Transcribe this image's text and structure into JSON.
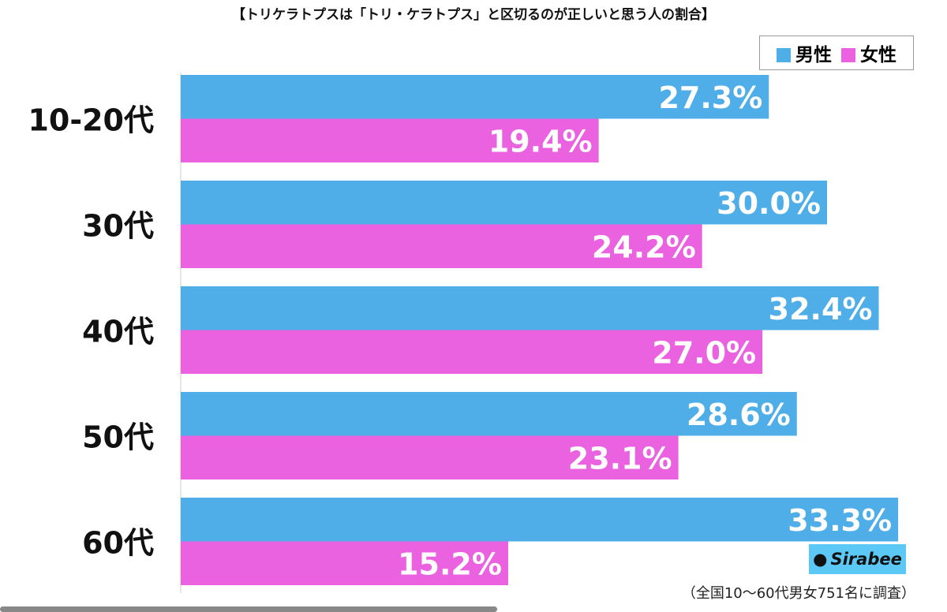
{
  "chart_data": {
    "type": "bar",
    "orientation": "horizontal",
    "title": "【トリケラトプスは「トリ・ケラトプス」と区切るのが正しいと思う人の割合】",
    "categories": [
      "10-20代",
      "30代",
      "40代",
      "50代",
      "60代"
    ],
    "series": [
      {
        "name": "男性",
        "color": "#4faee8",
        "values": [
          27.3,
          30.0,
          32.4,
          28.6,
          33.3
        ]
      },
      {
        "name": "女性",
        "color": "#eb62e0",
        "values": [
          19.4,
          24.2,
          27.0,
          23.1,
          15.2
        ]
      }
    ],
    "value_format": "%",
    "legend": "top-right",
    "grid": false
  },
  "logo": "Sirabee",
  "note": "（全国10～60代男女751名に調査）"
}
